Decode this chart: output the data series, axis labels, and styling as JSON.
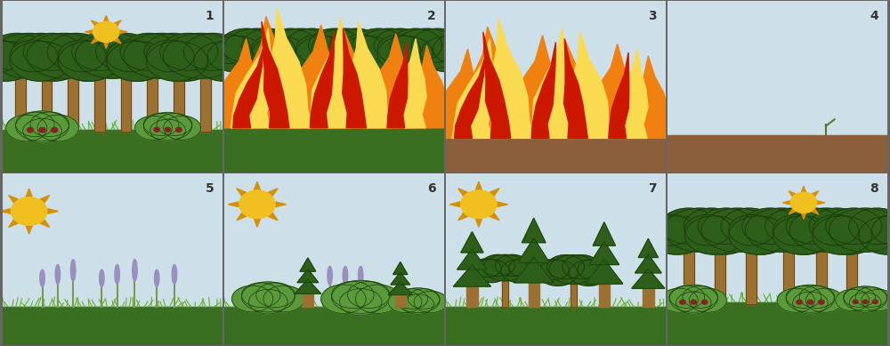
{
  "bg_sky": "#cde0ea",
  "bg_ground_green": "#3a6e20",
  "bg_ground_brown": "#8B5E3C",
  "tree_trunk_color": "#9B7030",
  "tree_dark_green": "#2d5e1a",
  "tree_mid_green": "#3a7a25",
  "bush_green": "#5a9a3a",
  "bush_light": "#6ab040",
  "grass_dark": "#3a7a20",
  "grass_light": "#6ab030",
  "sun_yellow": "#F0C020",
  "sun_ray": "#D4900A",
  "flame_orange": "#F08010",
  "flame_yellow": "#FADA50",
  "flame_light_yellow": "#FFF080",
  "flame_red": "#CC1800",
  "lavender": "#9b8fc0",
  "pine_green": "#2d5e1a",
  "border_color": "#555555",
  "number_color": "#333333"
}
